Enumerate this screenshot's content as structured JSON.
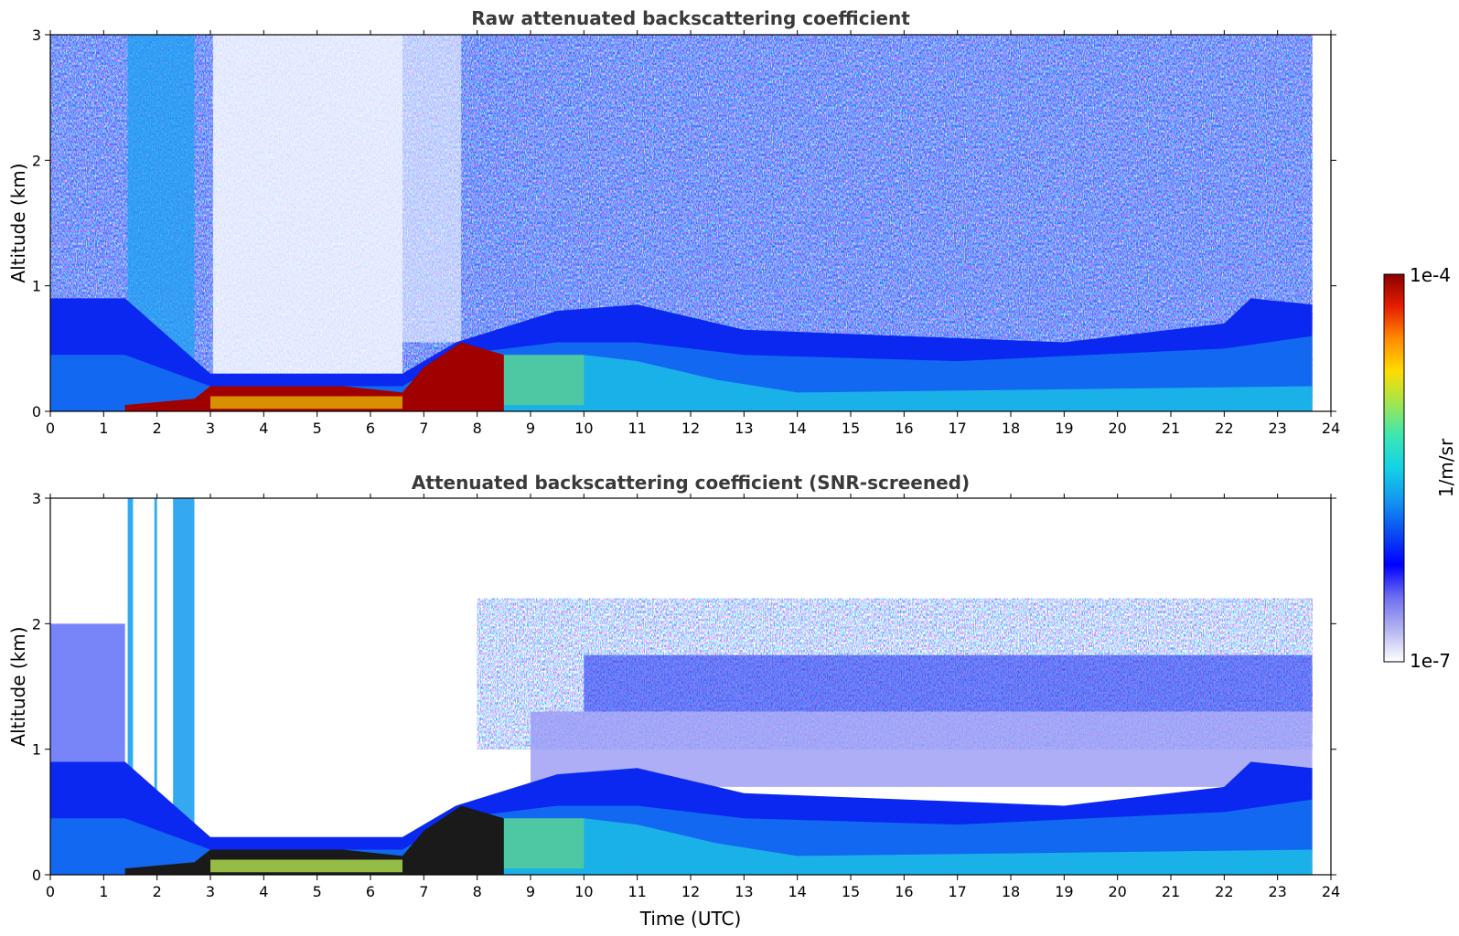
{
  "chart_data": [
    {
      "type": "heatmap",
      "title": "Raw attenuated backscattering coefficient",
      "xlabel": "",
      "ylabel": "Altitude (km)",
      "xlim": [
        0,
        24
      ],
      "ylim": [
        0,
        3
      ],
      "x_ticks": [
        "0",
        "1",
        "2",
        "3",
        "4",
        "5",
        "6",
        "7",
        "8",
        "9",
        "10",
        "11",
        "12",
        "13",
        "14",
        "15",
        "16",
        "17",
        "18",
        "19",
        "20",
        "21",
        "22",
        "23",
        "24"
      ],
      "y_ticks": [
        "0",
        "1",
        "2",
        "3"
      ],
      "data_end_x": 23.65,
      "description_of_field": {
        "boundary_layer_top_km": [
          [
            0,
            0.9
          ],
          [
            1.4,
            0.9
          ],
          [
            3.0,
            0.3
          ],
          [
            6.6,
            0.3
          ],
          [
            7.6,
            0.55
          ],
          [
            9.5,
            0.8
          ],
          [
            11,
            0.85
          ],
          [
            13,
            0.65
          ],
          [
            16,
            0.6
          ],
          [
            19,
            0.55
          ],
          [
            22,
            0.7
          ],
          [
            22.5,
            0.9
          ],
          [
            23.65,
            0.85
          ]
        ],
        "strong_return_layer_km": [
          [
            1.4,
            0.05
          ],
          [
            2.7,
            0.1
          ],
          [
            3.0,
            0.2
          ],
          [
            5.5,
            0.2
          ],
          [
            6.6,
            0.15
          ],
          [
            7.0,
            0.35
          ],
          [
            7.7,
            0.55
          ],
          [
            8.5,
            0.45
          ]
        ]
      }
    },
    {
      "type": "heatmap",
      "title": "Attenuated backscattering coefficient (SNR-screened)",
      "xlabel": "Time (UTC)",
      "ylabel": "Altitude (km)",
      "xlim": [
        0,
        24
      ],
      "ylim": [
        0,
        3
      ],
      "x_ticks": [
        "0",
        "1",
        "2",
        "3",
        "4",
        "5",
        "6",
        "7",
        "8",
        "9",
        "10",
        "11",
        "12",
        "13",
        "14",
        "15",
        "16",
        "17",
        "18",
        "19",
        "20",
        "21",
        "22",
        "23",
        "24"
      ],
      "y_ticks": [
        "0",
        "1",
        "2",
        "3"
      ],
      "data_end_x": 23.65
    }
  ],
  "colorbar": {
    "label": "1/m/sr",
    "max_label": "1e-4",
    "min_label": "1e-7",
    "scale": "log",
    "colormap": [
      "#ffffff",
      "#b4b4f0",
      "#6e6ef0",
      "#0000ff",
      "#0a4cf0",
      "#1496f0",
      "#14d2e6",
      "#3ce6b4",
      "#a0e650",
      "#ffdc00",
      "#ff8c00",
      "#e61e00",
      "#8b0000"
    ]
  }
}
